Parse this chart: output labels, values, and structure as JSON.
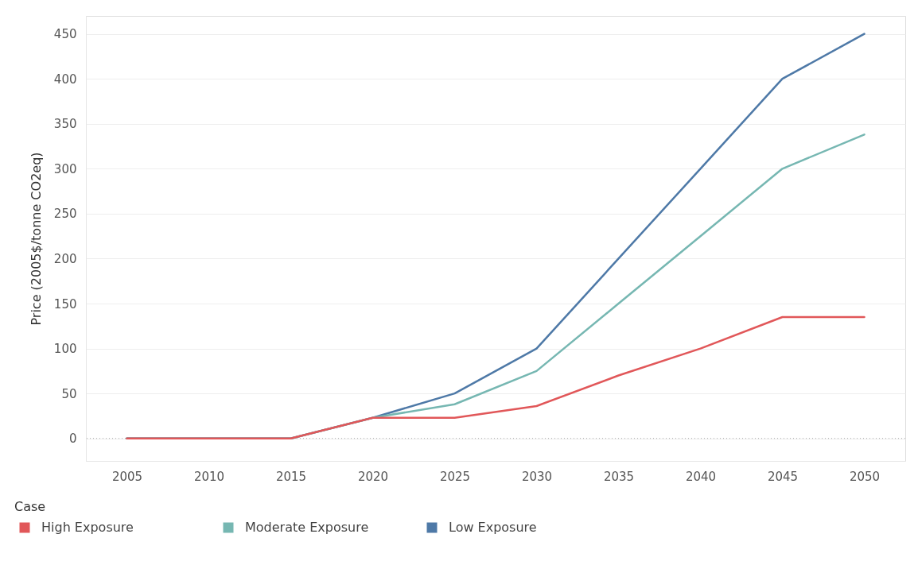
{
  "chart_data": {
    "type": "line",
    "ylabel": "Price (2005$/tonne CO2eq)",
    "legend_title": "Case",
    "categories": [
      "2005",
      "2010",
      "2015",
      "2020",
      "2025",
      "2030",
      "2035",
      "2040",
      "2045",
      "2050"
    ],
    "series": [
      {
        "name": "High Exposure",
        "color": "#e15759",
        "values": [
          0,
          0,
          0,
          23,
          23,
          36,
          70,
          100,
          135,
          135
        ]
      },
      {
        "name": "Moderate Exposure",
        "color": "#76b7b2",
        "values": [
          0,
          0,
          0,
          23,
          38,
          75,
          150,
          225,
          300,
          338
        ]
      },
      {
        "name": "Low Exposure",
        "color": "#4e79a7",
        "values": [
          0,
          0,
          0,
          23,
          50,
          100,
          200,
          300,
          400,
          450
        ]
      }
    ],
    "ylim": [
      -25,
      470
    ],
    "yticks": [
      0,
      50,
      100,
      150,
      200,
      250,
      300,
      350,
      400,
      450
    ],
    "grid": "y",
    "legend": "bottom",
    "line_style": "solid",
    "ref_lines": [
      {
        "axis": "y",
        "value": 0,
        "color": "#bbbbbb",
        "line_style": "dotted"
      }
    ]
  }
}
